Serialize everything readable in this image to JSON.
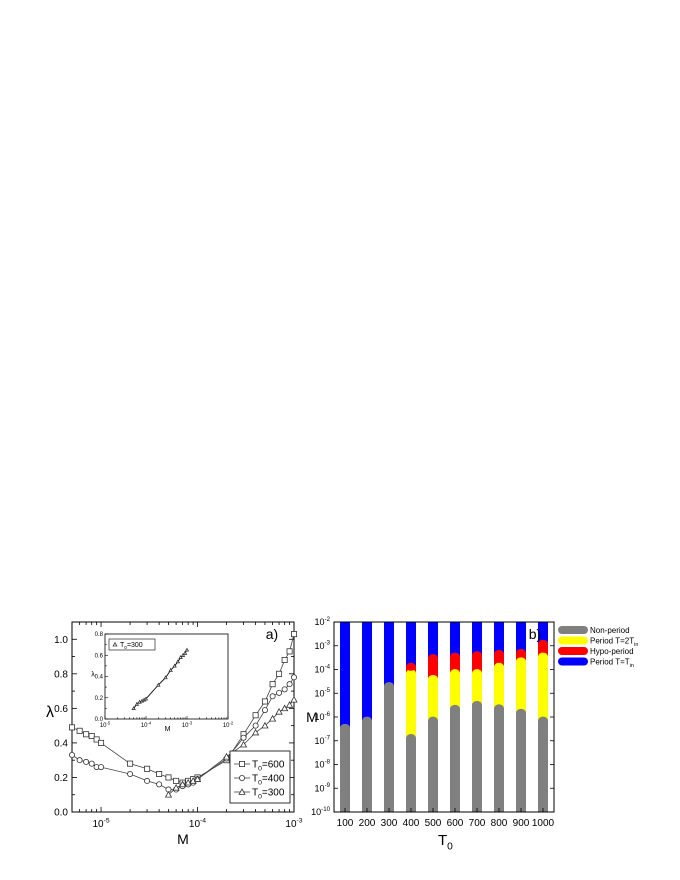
{
  "chart_data": [
    {
      "type": "line",
      "panel_label": "a)",
      "xlabel": "M",
      "ylabel": "λ",
      "xscale": "log",
      "xlim": [
        5e-06,
        0.001
      ],
      "ylim": [
        0.0,
        1.1
      ],
      "x_ticks": [
        {
          "value": 1e-05,
          "base": "10",
          "exp": "-5"
        },
        {
          "value": 0.0001,
          "base": "10",
          "exp": "-4"
        },
        {
          "value": 0.001,
          "base": "10",
          "exp": "-3"
        }
      ],
      "y_ticks": [
        "0.0",
        "0.2",
        "0.4",
        "0.6",
        "0.8",
        "1.0"
      ],
      "legend_position": "bottom-right",
      "series": [
        {
          "name": "T₀=600",
          "label_main": "T",
          "label_sub": "0",
          "label_rest": "=600",
          "marker": "square",
          "x": [
            5e-06,
            6e-06,
            7e-06,
            8e-06,
            9e-06,
            1e-05,
            2e-05,
            3e-05,
            4e-05,
            5e-05,
            6e-05,
            7e-05,
            8e-05,
            9e-05,
            0.0001,
            0.0002,
            0.0003,
            0.0004,
            0.0005,
            0.0006,
            0.0007,
            0.0008,
            0.0009,
            0.001
          ],
          "y": [
            0.49,
            0.47,
            0.45,
            0.44,
            0.42,
            0.4,
            0.28,
            0.25,
            0.22,
            0.2,
            0.18,
            0.17,
            0.18,
            0.19,
            0.2,
            0.3,
            0.45,
            0.56,
            0.64,
            0.74,
            0.8,
            0.88,
            0.93,
            1.03
          ]
        },
        {
          "name": "T₀=400",
          "label_main": "T",
          "label_sub": "0",
          "label_rest": "=400",
          "marker": "circle",
          "x": [
            5e-06,
            6e-06,
            7e-06,
            8e-06,
            9e-06,
            1e-05,
            2e-05,
            3e-05,
            4e-05,
            5e-05,
            6e-05,
            7e-05,
            8e-05,
            9e-05,
            0.0001,
            0.0002,
            0.0003,
            0.0004,
            0.0005,
            0.0006,
            0.0007,
            0.0008,
            0.0009,
            0.001
          ],
          "y": [
            0.33,
            0.3,
            0.29,
            0.28,
            0.26,
            0.26,
            0.22,
            0.18,
            0.16,
            0.13,
            0.13,
            0.15,
            0.16,
            0.17,
            0.19,
            0.31,
            0.43,
            0.5,
            0.59,
            0.67,
            0.69,
            0.71,
            0.74,
            0.78
          ]
        },
        {
          "name": "T₀=300",
          "label_main": "T",
          "label_sub": "0",
          "label_rest": "=300",
          "marker": "triangle",
          "x": [
            5e-05,
            6e-05,
            7e-05,
            8e-05,
            9e-05,
            0.0001,
            0.0002,
            0.0003,
            0.0004,
            0.0005,
            0.0006,
            0.0007,
            0.0008,
            0.0009,
            0.001
          ],
          "y": [
            0.1,
            0.14,
            0.16,
            0.17,
            0.18,
            0.19,
            0.32,
            0.39,
            0.46,
            0.5,
            0.54,
            0.58,
            0.6,
            0.62,
            0.65
          ]
        }
      ],
      "inset": {
        "type": "line",
        "xscale": "log",
        "xlabel": "M",
        "ylabel": "λ",
        "xlim": [
          1e-05,
          0.01
        ],
        "ylim": [
          0.0,
          0.8
        ],
        "x_ticks": [
          {
            "value": 1e-05,
            "base": "10",
            "exp": "-5"
          },
          {
            "value": 0.0001,
            "base": "10",
            "exp": "-4"
          },
          {
            "value": 0.001,
            "base": "10",
            "exp": "-3"
          },
          {
            "value": 0.01,
            "base": "10",
            "exp": "-2"
          }
        ],
        "y_ticks": [
          "0.0",
          "0.2",
          "0.4",
          "0.6",
          "0.8"
        ],
        "series": [
          {
            "name": "T₀=300",
            "label_main": "T",
            "label_sub": "0",
            "label_rest": "=300",
            "marker": "triangle",
            "x": [
              5e-05,
              6e-05,
              7e-05,
              8e-05,
              9e-05,
              0.0001,
              0.0002,
              0.0003,
              0.0004,
              0.0005,
              0.0006,
              0.0007,
              0.0008,
              0.0009,
              0.001
            ],
            "y": [
              0.1,
              0.14,
              0.16,
              0.17,
              0.18,
              0.19,
              0.32,
              0.39,
              0.46,
              0.5,
              0.54,
              0.58,
              0.6,
              0.62,
              0.65
            ]
          }
        ]
      }
    },
    {
      "type": "bar",
      "stacked": true,
      "panel_label": "b)",
      "xlabel_main": "T",
      "xlabel_sub": "0",
      "ylabel": "M",
      "yscale": "log",
      "ylim": [
        1e-10,
        0.01
      ],
      "y_ticks": [
        {
          "value": 1e-10,
          "base": "10",
          "exp": "-10"
        },
        {
          "value": 1e-09,
          "base": "10",
          "exp": "-9"
        },
        {
          "value": 1e-08,
          "base": "10",
          "exp": "-8"
        },
        {
          "value": 1e-07,
          "base": "10",
          "exp": "-7"
        },
        {
          "value": 1e-06,
          "base": "10",
          "exp": "-6"
        },
        {
          "value": 1e-05,
          "base": "10",
          "exp": "-5"
        },
        {
          "value": 0.0001,
          "base": "10",
          "exp": "-4"
        },
        {
          "value": 0.001,
          "base": "10",
          "exp": "-3"
        },
        {
          "value": 0.01,
          "base": "10",
          "exp": "-2"
        }
      ],
      "categories": [
        "100",
        "200",
        "300",
        "400",
        "500",
        "600",
        "700",
        "800",
        "900",
        "1000"
      ],
      "legend_position": "right",
      "segments": [
        {
          "name": "Non-period",
          "color": "#808080",
          "label_main": "Non-period",
          "label_sub": "",
          "upper": [
            3.5e-07,
            7e-07,
            2e-05,
            1.3e-07,
            7e-07,
            2.2e-06,
            3.2e-06,
            2.3e-06,
            1.5e-06,
            7e-07
          ]
        },
        {
          "name": "Period T=2Tin",
          "color": "#ffff00",
          "label_main": "Period T=2T",
          "label_sub": "in",
          "upper": [
            3.5e-07,
            7e-07,
            2e-05,
            7e-05,
            4e-05,
            7e-05,
            7e-05,
            0.00013,
            0.00022,
            0.00035
          ]
        },
        {
          "name": "Hypo-period",
          "color": "#ff0000",
          "label_main": "Hypo-period",
          "label_sub": "",
          "upper": [
            3.5e-07,
            7e-07,
            2e-05,
            0.00013,
            0.0003,
            0.00035,
            0.0004,
            0.00045,
            0.0005,
            0.0012
          ]
        },
        {
          "name": "Period T=Tin",
          "color": "#0000ff",
          "label_main": "Period T=T",
          "label_sub": "in",
          "upper": [
            0.01,
            0.01,
            0.01,
            0.01,
            0.01,
            0.01,
            0.01,
            0.01,
            0.01,
            0.01
          ]
        }
      ]
    }
  ]
}
